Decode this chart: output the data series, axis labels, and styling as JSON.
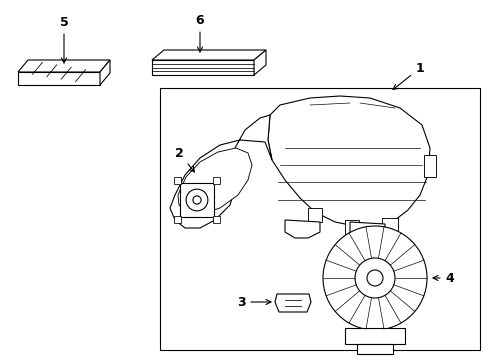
{
  "bg_color": "#ffffff",
  "line_color": "#000000",
  "fig_width": 4.89,
  "fig_height": 3.6,
  "dpi": 100,
  "font_size": 9,
  "lw": 0.8
}
